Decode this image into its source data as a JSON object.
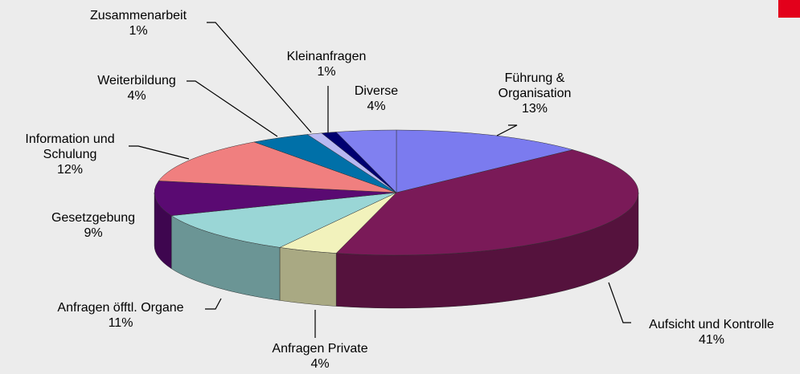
{
  "chart_data": {
    "type": "pie",
    "categories": [
      "Führung & Organisation",
      "Aufsicht und Kontrolle",
      "Anfragen Private",
      "Anfragen öfftl. Organe",
      "Gesetzgebung",
      "Information und Schulung",
      "Weiterbildung",
      "Zusammenarbeit",
      "Kleinanfragen",
      "Diverse"
    ],
    "values": [
      13,
      41,
      4,
      11,
      9,
      12,
      4,
      1,
      1,
      4
    ],
    "value_labels": [
      "13%",
      "41%",
      "4%",
      "11%",
      "9%",
      "12%",
      "4%",
      "1%",
      "1%",
      "4%"
    ],
    "colors": [
      "#7b7bef",
      "#7a1a58",
      "#f2f2bc",
      "#9ad6d6",
      "#5a0a72",
      "#f07f7f",
      "#0070a8",
      "#b8b8f2",
      "#000070",
      "#8080f0"
    ]
  }
}
